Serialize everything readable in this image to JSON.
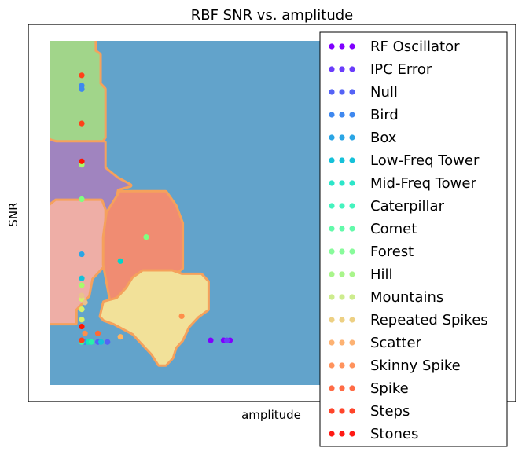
{
  "chart_data": {
    "type": "scatter",
    "title": "RBF SNR vs. amplitude",
    "xlabel": "amplitude",
    "ylabel": "SNR",
    "xlim": [
      0,
      1
    ],
    "ylim": [
      0,
      1
    ],
    "ticks_visible": false,
    "grid": false,
    "legend_placement": "upper right",
    "background_region_color": "#62a3cb",
    "regions": [
      {
        "name": "green",
        "color": "#a1d58a",
        "polygon": [
          [
            0.0,
            1.0
          ],
          [
            0.0,
            0.72
          ],
          [
            0.02,
            0.705
          ],
          [
            0.16,
            0.705
          ],
          [
            0.17,
            0.72
          ],
          [
            0.17,
            0.86
          ],
          [
            0.155,
            0.875
          ],
          [
            0.155,
            0.96
          ],
          [
            0.14,
            0.97
          ],
          [
            0.14,
            1.0
          ]
        ]
      },
      {
        "name": "purple",
        "color": "#a084bf",
        "polygon": [
          [
            0.0,
            0.71
          ],
          [
            0.0,
            0.5
          ],
          [
            0.17,
            0.5
          ],
          [
            0.2,
            0.53
          ],
          [
            0.21,
            0.57
          ],
          [
            0.25,
            0.58
          ],
          [
            0.21,
            0.6
          ],
          [
            0.17,
            0.63
          ],
          [
            0.17,
            0.705
          ],
          [
            0.02,
            0.705
          ]
        ]
      },
      {
        "name": "pink",
        "color": "#eeaea6",
        "polygon": [
          [
            0.0,
            0.52
          ],
          [
            0.02,
            0.535
          ],
          [
            0.16,
            0.535
          ],
          [
            0.17,
            0.51
          ],
          [
            0.17,
            0.43
          ],
          [
            0.2,
            0.39
          ],
          [
            0.17,
            0.35
          ],
          [
            0.13,
            0.31
          ],
          [
            0.12,
            0.26
          ],
          [
            0.08,
            0.22
          ],
          [
            0.08,
            0.18
          ],
          [
            0.0,
            0.18
          ]
        ]
      },
      {
        "name": "orange",
        "color": "#f08c72",
        "polygon": [
          [
            0.18,
            0.5
          ],
          [
            0.2,
            0.53
          ],
          [
            0.22,
            0.56
          ],
          [
            0.36,
            0.56
          ],
          [
            0.39,
            0.52
          ],
          [
            0.41,
            0.47
          ],
          [
            0.41,
            0.34
          ],
          [
            0.37,
            0.31
          ],
          [
            0.34,
            0.31
          ],
          [
            0.33,
            0.29
          ],
          [
            0.31,
            0.26
          ],
          [
            0.29,
            0.24
          ],
          [
            0.26,
            0.21
          ],
          [
            0.22,
            0.21
          ],
          [
            0.19,
            0.25
          ],
          [
            0.17,
            0.35
          ],
          [
            0.17,
            0.43
          ]
        ]
      },
      {
        "name": "yellow",
        "color": "#f2e199",
        "polygon": [
          [
            0.17,
            0.24
          ],
          [
            0.21,
            0.25
          ],
          [
            0.24,
            0.28
          ],
          [
            0.26,
            0.31
          ],
          [
            0.29,
            0.33
          ],
          [
            0.34,
            0.33
          ],
          [
            0.38,
            0.33
          ],
          [
            0.41,
            0.32
          ],
          [
            0.47,
            0.32
          ],
          [
            0.49,
            0.3
          ],
          [
            0.49,
            0.22
          ],
          [
            0.46,
            0.2
          ],
          [
            0.43,
            0.17
          ],
          [
            0.41,
            0.13
          ],
          [
            0.39,
            0.11
          ],
          [
            0.38,
            0.08
          ],
          [
            0.36,
            0.06
          ],
          [
            0.34,
            0.06
          ],
          [
            0.32,
            0.09
          ],
          [
            0.29,
            0.12
          ],
          [
            0.26,
            0.15
          ],
          [
            0.2,
            0.18
          ],
          [
            0.17,
            0.19
          ],
          [
            0.16,
            0.2
          ]
        ]
      }
    ],
    "series": [
      {
        "name": "RF Oscillator",
        "color": "#8000ff",
        "x": [
          0.5,
          0.54,
          0.56
        ],
        "y": [
          0.13,
          0.13,
          0.13
        ]
      },
      {
        "name": "IPC Error",
        "color": "#6a3cfb",
        "x": [
          0.55
        ],
        "y": [
          0.13
        ]
      },
      {
        "name": "Null",
        "color": "#5563f6",
        "x": [
          0.11,
          0.13,
          0.15,
          0.18
        ],
        "y": [
          0.125,
          0.125,
          0.125,
          0.125
        ]
      },
      {
        "name": "Bird",
        "color": "#3f88ef",
        "x": [
          0.1,
          0.1,
          0.11
        ],
        "y": [
          0.87,
          0.86,
          0.125
        ]
      },
      {
        "name": "Box",
        "color": "#2aa5e5",
        "x": [
          0.1,
          0.13
        ],
        "y": [
          0.38,
          0.125
        ]
      },
      {
        "name": "Low-Freq Tower",
        "color": "#15c1d9",
        "x": [
          0.1,
          0.16
        ],
        "y": [
          0.31,
          0.125
        ]
      },
      {
        "name": "Mid-Freq Tower",
        "color": "#00d5ca",
        "x": [
          0.22
        ],
        "y": [
          0.36
        ]
      },
      {
        "name": "Caterpillar",
        "color": "#15e5ba",
        "x": [
          0.12
        ],
        "y": [
          0.125
        ]
      },
      {
        "name": "Comet",
        "color": "#2af1a8",
        "x": [
          0.13
        ],
        "y": [
          0.125
        ]
      },
      {
        "name": "Forest",
        "color": "#3ffa95",
        "x": [
          0.1
        ],
        "y": [
          0.125
        ]
      },
      {
        "name": "Hill",
        "color": "#80ff80",
        "x": [
          0.3,
          0.1
        ],
        "y": [
          0.43,
          0.54
        ]
      },
      {
        "name": "Mountains",
        "color": "#aafa6b",
        "x": [
          0.1,
          0.1
        ],
        "y": [
          0.64,
          0.29
        ]
      },
      {
        "name": "Repeated Spikes",
        "color": "#d4f16b",
        "x": [
          0.1,
          0.1,
          0.1
        ],
        "y": [
          0.25,
          0.22,
          0.19
        ]
      },
      {
        "name": "Scatter",
        "color": "#eac18c",
        "x": [
          0.1,
          0.11
        ],
        "y": [
          0.26,
          0.24
        ]
      },
      {
        "name": "Skinny Spike",
        "color": "#ffb360",
        "x": [
          0.22,
          0.1
        ],
        "y": [
          0.14,
          0.17
        ]
      },
      {
        "name": "Spike",
        "color": "#ff8e4a",
        "x": [
          0.41,
          0.11
        ],
        "y": [
          0.2,
          0.15
        ]
      },
      {
        "name": "Steps",
        "color": "#ff6a33",
        "x": [
          0.15
        ],
        "y": [
          0.15
        ]
      },
      {
        "name": "Stones",
        "color": "#ff4119",
        "x": [
          0.1,
          0.1,
          0.1
        ],
        "y": [
          0.76,
          0.9,
          0.13
        ]
      },
      {
        "name": "",
        "color": "#ff1400",
        "x": [
          0.1,
          0.1
        ],
        "y": [
          0.65,
          0.17
        ]
      }
    ],
    "legend": [
      {
        "label": "RF Oscillator",
        "color": "#8000ff"
      },
      {
        "label": "IPC Error",
        "color": "#6a3cfb"
      },
      {
        "label": "Null",
        "color": "#5563f6"
      },
      {
        "label": "Bird",
        "color": "#3f88ef"
      },
      {
        "label": "Box",
        "color": "#2aa5e5"
      },
      {
        "label": "Low-Freq Tower",
        "color": "#15c1d9"
      },
      {
        "label": "Mid-Freq Tower",
        "color": "#2ce6c9"
      },
      {
        "label": "Caterpillar",
        "color": "#45f3be"
      },
      {
        "label": "Comet",
        "color": "#62faaa"
      },
      {
        "label": "Forest",
        "color": "#88fb9b"
      },
      {
        "label": "Hill",
        "color": "#a9f58b"
      },
      {
        "label": "Mountains",
        "color": "#cdec8e"
      },
      {
        "label": "Repeated Spikes",
        "color": "#edd083"
      },
      {
        "label": "Scatter",
        "color": "#fdb273"
      },
      {
        "label": "Skinny Spike",
        "color": "#ff935d"
      },
      {
        "label": "Spike",
        "color": "#ff6b45"
      },
      {
        "label": "Steps",
        "color": "#ff442a"
      },
      {
        "label": "Stones",
        "color": "#ff1a14"
      }
    ]
  }
}
